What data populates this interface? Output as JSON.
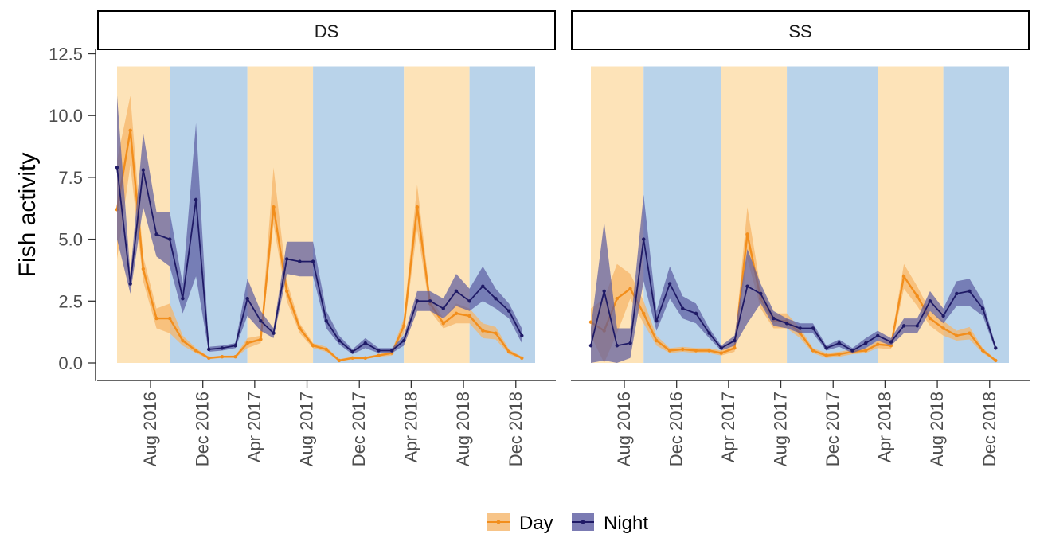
{
  "chart_data": {
    "type": "line",
    "ylabel": "Fish activity",
    "xlabel": "",
    "ylim": [
      0,
      12.5
    ],
    "yticks": [
      "0.0",
      "2.5",
      "5.0",
      "7.5",
      "10.0",
      "12.5"
    ],
    "xticks": [
      "Aug 2016",
      "Dec 2016",
      "Apr 2017",
      "Aug 2017",
      "Dec 2017",
      "Apr 2018",
      "Aug 2018",
      "Dec 2018"
    ],
    "legend": {
      "position": "bottom",
      "entries": [
        {
          "name": "Day",
          "color": "#f28e1c",
          "fill": "#f5b56a"
        },
        {
          "name": "Night",
          "color": "#1f1a66",
          "fill": "#5a5aa0"
        }
      ]
    },
    "colors": {
      "day_band": "#fde3b8",
      "night_band": "#b9d3ea"
    },
    "period_bands": [
      {
        "type": "day",
        "start": "2016-05-15",
        "end": "2016-09-15"
      },
      {
        "type": "night",
        "start": "2016-09-15",
        "end": "2017-03-15"
      },
      {
        "type": "day",
        "start": "2017-03-15",
        "end": "2017-08-15"
      },
      {
        "type": "night",
        "start": "2017-08-15",
        "end": "2018-03-15"
      },
      {
        "type": "day",
        "start": "2018-03-15",
        "end": "2018-08-15"
      },
      {
        "type": "night",
        "start": "2018-08-15",
        "end": "2019-01-15"
      }
    ],
    "x": [
      "2016-05-15",
      "2016-06-15",
      "2016-07-15",
      "2016-08-15",
      "2016-09-15",
      "2016-10-15",
      "2016-11-15",
      "2016-12-15",
      "2017-01-15",
      "2017-02-15",
      "2017-03-15",
      "2017-04-15",
      "2017-05-15",
      "2017-06-15",
      "2017-07-15",
      "2017-08-15",
      "2017-09-15",
      "2017-10-15",
      "2017-11-15",
      "2017-12-15",
      "2018-01-15",
      "2018-02-15",
      "2018-03-15",
      "2018-04-15",
      "2018-05-15",
      "2018-06-15",
      "2018-07-15",
      "2018-08-15",
      "2018-09-15",
      "2018-10-15",
      "2018-11-15",
      "2018-12-15",
      "2019-01-01"
    ],
    "panels": [
      {
        "label": "DS",
        "series": [
          {
            "name": "Day",
            "values": [
              6.2,
              9.4,
              3.8,
              1.8,
              1.8,
              0.9,
              0.5,
              0.2,
              0.25,
              0.25,
              0.8,
              0.95,
              6.3,
              2.9,
              1.4,
              0.7,
              0.55,
              0.1,
              0.2,
              0.2,
              0.3,
              0.4,
              1.5,
              6.3,
              2.4,
              1.6,
              2.0,
              1.9,
              1.3,
              1.2,
              0.45,
              0.2,
              null
            ],
            "lower": [
              4.2,
              8.0,
              3.3,
              1.4,
              1.2,
              0.7,
              0.4,
              0.15,
              0.2,
              0.2,
              0.6,
              0.8,
              5.6,
              2.5,
              1.2,
              0.6,
              0.45,
              0.05,
              0.15,
              0.15,
              0.25,
              0.3,
              1.2,
              5.4,
              2.1,
              1.4,
              1.6,
              1.6,
              1.0,
              0.95,
              0.35,
              0.15,
              null
            ],
            "upper": [
              8.2,
              10.8,
              4.3,
              2.2,
              2.4,
              1.1,
              0.6,
              0.25,
              0.3,
              0.3,
              1.0,
              1.1,
              7.9,
              3.3,
              1.6,
              0.8,
              0.65,
              0.15,
              0.25,
              0.25,
              0.35,
              0.5,
              1.8,
              7.2,
              2.7,
              1.8,
              2.4,
              2.2,
              1.6,
              1.45,
              0.55,
              0.25,
              null
            ]
          },
          {
            "name": "Night",
            "values": [
              7.9,
              3.2,
              7.8,
              5.2,
              5.0,
              2.6,
              6.6,
              0.55,
              0.6,
              0.7,
              2.6,
              1.7,
              1.2,
              4.2,
              4.1,
              4.1,
              1.7,
              0.9,
              0.45,
              0.8,
              0.5,
              0.5,
              0.9,
              2.5,
              2.5,
              2.2,
              2.9,
              2.5,
              3.1,
              2.6,
              2.1,
              1.1,
              null
            ],
            "lower": [
              5.0,
              2.8,
              6.3,
              4.3,
              3.9,
              2.0,
              3.5,
              0.45,
              0.5,
              0.6,
              1.9,
              1.3,
              1.0,
              3.6,
              3.5,
              3.5,
              1.4,
              0.75,
              0.35,
              0.6,
              0.4,
              0.4,
              0.7,
              2.1,
              2.1,
              1.8,
              2.3,
              2.1,
              2.5,
              2.2,
              1.8,
              0.8,
              null
            ],
            "upper": [
              10.8,
              3.6,
              9.3,
              6.1,
              6.1,
              3.2,
              9.7,
              0.65,
              0.7,
              0.8,
              3.4,
              2.1,
              1.4,
              4.9,
              4.9,
              4.9,
              2.1,
              1.1,
              0.55,
              1.0,
              0.6,
              0.6,
              1.1,
              2.9,
              2.9,
              2.6,
              3.6,
              3.0,
              3.9,
              3.0,
              2.4,
              1.4,
              null
            ]
          }
        ]
      },
      {
        "label": "SS",
        "series": [
          {
            "name": "Day",
            "values": [
              1.65,
              1.3,
              2.6,
              3.0,
              2.0,
              0.9,
              0.5,
              0.55,
              0.5,
              0.5,
              0.4,
              0.6,
              5.2,
              2.6,
              1.7,
              1.7,
              1.2,
              0.5,
              0.3,
              0.35,
              0.45,
              0.5,
              0.75,
              0.7,
              3.5,
              2.7,
              1.8,
              1.4,
              1.1,
              1.2,
              0.5,
              0.1,
              null
            ],
            "lower": [
              1.1,
              0.0,
              1.2,
              2.6,
              1.6,
              0.7,
              0.4,
              0.45,
              0.4,
              0.4,
              0.3,
              0.45,
              4.2,
              2.2,
              1.4,
              1.4,
              1.0,
              0.4,
              0.2,
              0.25,
              0.35,
              0.4,
              0.6,
              0.55,
              3.0,
              2.3,
              1.5,
              1.1,
              0.9,
              0.95,
              0.4,
              0.05,
              null
            ],
            "upper": [
              2.2,
              2.6,
              4.0,
              3.6,
              2.5,
              1.1,
              0.6,
              0.65,
              0.6,
              0.6,
              0.5,
              0.75,
              6.3,
              3.0,
              2.0,
              2.0,
              1.4,
              0.6,
              0.4,
              0.45,
              0.55,
              0.6,
              0.9,
              0.85,
              4.0,
              3.1,
              2.1,
              1.7,
              1.3,
              1.45,
              0.6,
              0.15,
              null
            ]
          },
          {
            "name": "Night",
            "values": [
              0.7,
              2.9,
              0.7,
              0.8,
              5.0,
              1.7,
              3.2,
              2.2,
              2.0,
              1.2,
              0.6,
              0.9,
              3.1,
              2.8,
              1.8,
              1.6,
              1.4,
              1.4,
              0.6,
              0.8,
              0.5,
              0.8,
              1.1,
              0.85,
              1.5,
              1.5,
              2.5,
              1.9,
              2.8,
              2.9,
              2.2,
              0.6,
              null
            ],
            "lower": [
              0.0,
              0.1,
              0.0,
              0.2,
              3.3,
              1.3,
              2.6,
              1.8,
              1.6,
              1.0,
              0.5,
              0.7,
              1.6,
              2.4,
              1.5,
              1.4,
              1.2,
              1.2,
              0.5,
              0.65,
              0.4,
              0.6,
              0.9,
              0.7,
              1.2,
              1.2,
              2.1,
              1.6,
              2.3,
              2.3,
              1.9,
              0.5,
              null
            ],
            "upper": [
              1.4,
              5.7,
              1.4,
              1.4,
              6.8,
              2.1,
              3.9,
              2.7,
              2.4,
              1.4,
              0.7,
              1.1,
              4.6,
              3.2,
              2.1,
              1.8,
              1.6,
              1.6,
              0.7,
              0.95,
              0.6,
              1.0,
              1.3,
              1.0,
              1.8,
              1.8,
              2.9,
              2.2,
              3.3,
              3.4,
              2.5,
              0.7,
              null
            ]
          }
        ]
      }
    ]
  }
}
